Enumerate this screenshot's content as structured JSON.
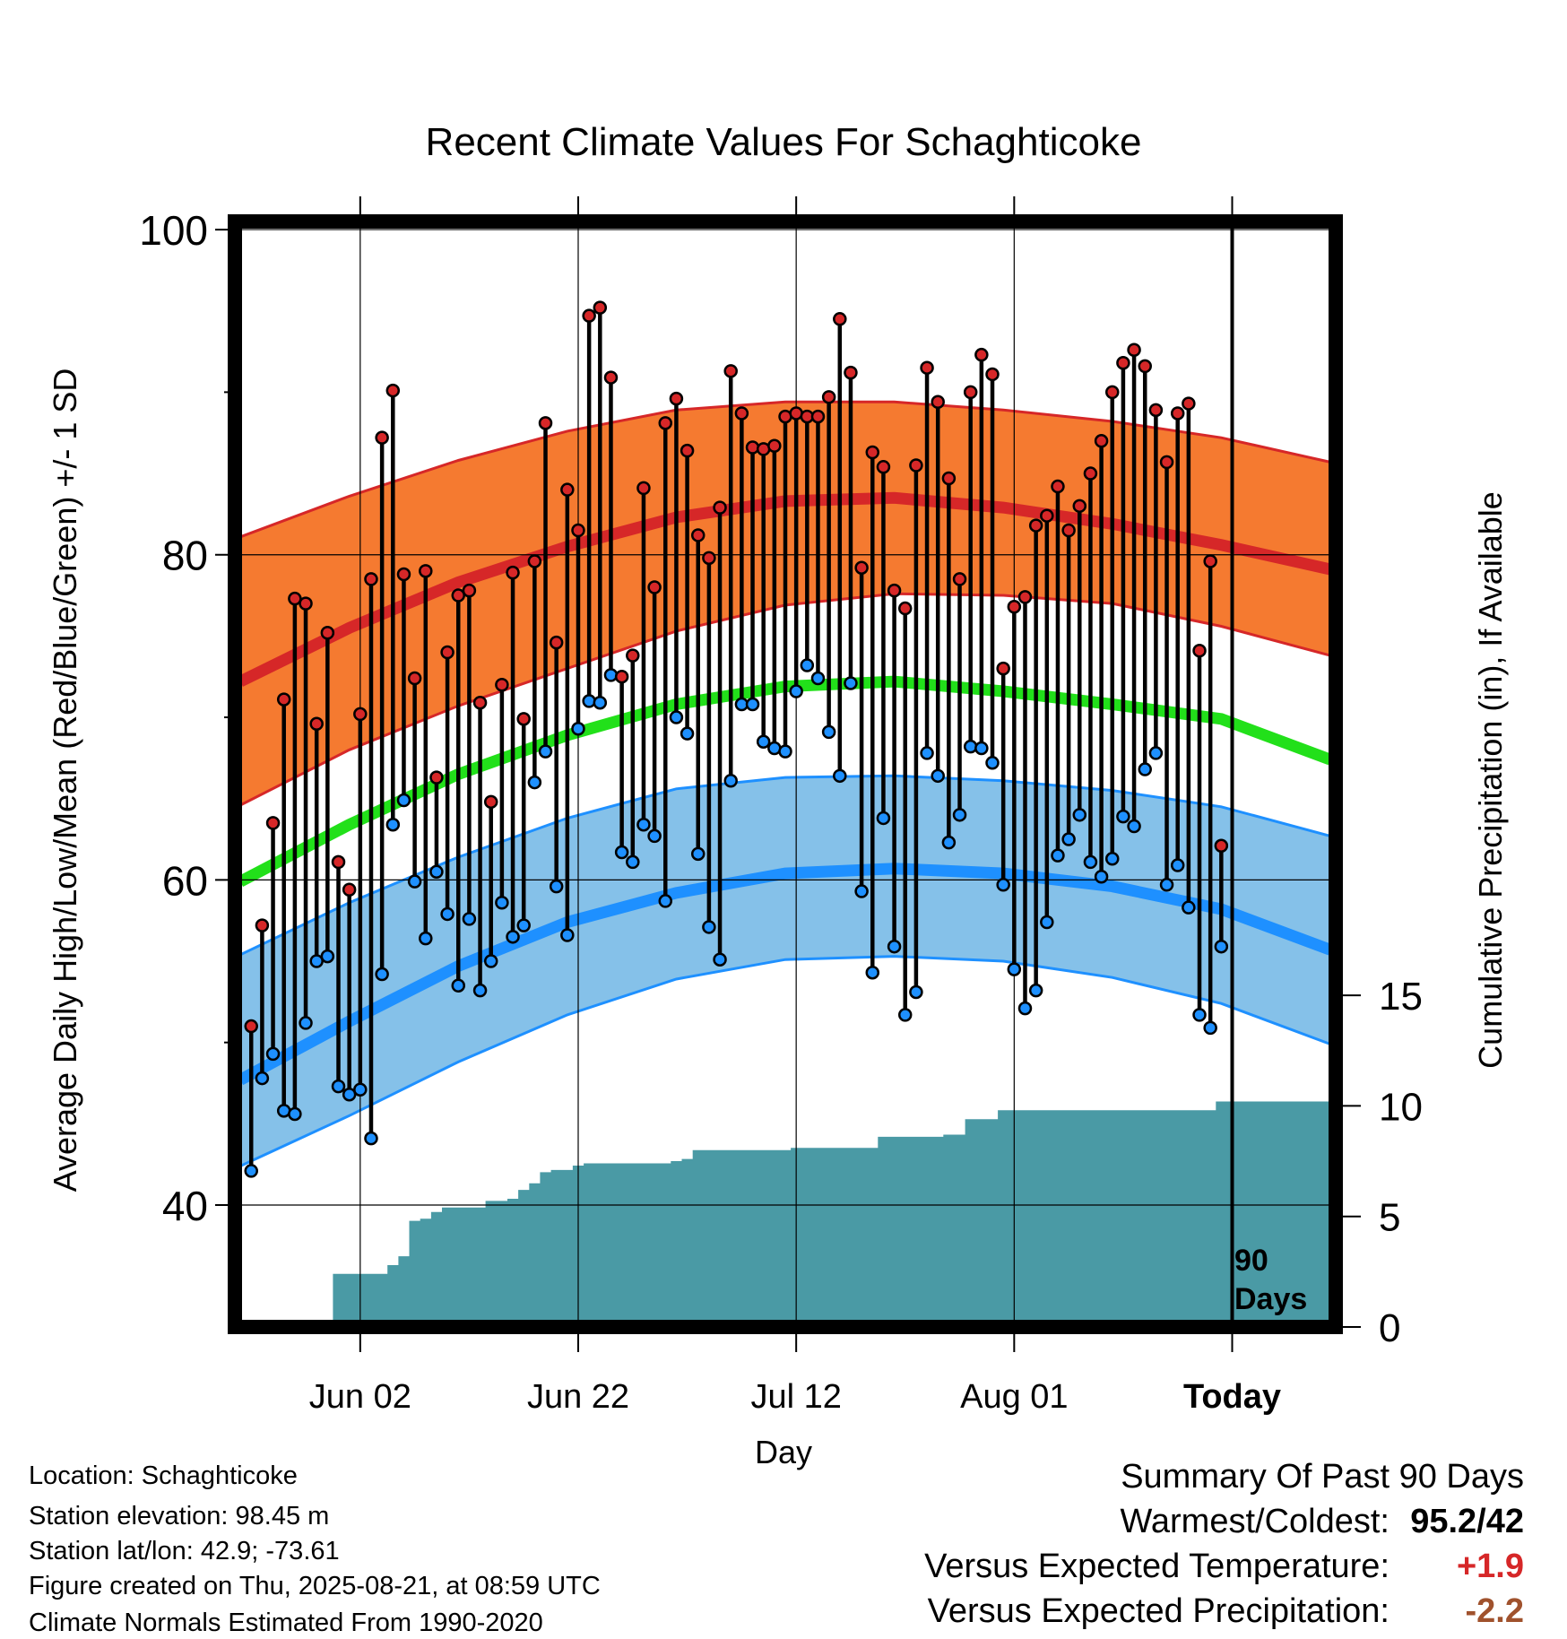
{
  "chart_data": {
    "type": "line",
    "title": "Recent Climate Values For Schaghticoke",
    "xlabel": "Day",
    "ylabel": "Average Daily High/Low/Mean (Red/Blue/Green) +/- 1 SD",
    "y2label": "Cumulative Precipitation (in), If Available",
    "ylim": [
      32.5,
      100.5
    ],
    "y_ticks": [
      "40",
      "60",
      "80",
      "100"
    ],
    "y2_ticks": [
      "0",
      "5",
      "10",
      "15"
    ],
    "y2lim": [
      0,
      50
    ],
    "x_tick_labels": [
      "Jun 02",
      "Jun 22",
      "Jul 12",
      "Aug 01",
      "Today"
    ],
    "x_tick_days": [
      -80,
      -60,
      -40,
      -20,
      0
    ],
    "xlim": [
      -91.5,
      9.5
    ],
    "today_marker": {
      "day": 0,
      "label_line1": "90",
      "label_line2": "Days"
    },
    "grid": true,
    "colors": {
      "high_band": "#f57a30",
      "high_line": "#d62728",
      "low_band": "#85c1e9",
      "low_line": "#1e90ff",
      "mean_line": "#22e01a",
      "precip": "#4a9aa5",
      "high_point": "#d62728",
      "low_point": "#1e90ff"
    },
    "normals": {
      "days": [
        -91,
        -81,
        -71,
        -61,
        -51,
        -41,
        -31,
        -21,
        -11,
        -1,
        9
      ],
      "high_mean": [
        72.2,
        75.5,
        78.3,
        80.5,
        82.3,
        83.3,
        83.5,
        82.9,
        81.9,
        80.6,
        79.1
      ],
      "high_upper": [
        81.1,
        83.6,
        85.8,
        87.6,
        88.9,
        89.4,
        89.4,
        88.9,
        88.2,
        87.2,
        85.7
      ],
      "high_lower": [
        64.6,
        68.0,
        70.7,
        73.0,
        75.3,
        76.9,
        77.6,
        77.5,
        77.0,
        75.6,
        73.8
      ],
      "low_mean": [
        47.7,
        51.3,
        54.7,
        57.4,
        59.2,
        60.4,
        60.7,
        60.4,
        59.6,
        58.2,
        55.7
      ],
      "low_upper": [
        55.4,
        58.6,
        61.4,
        63.8,
        65.6,
        66.3,
        66.4,
        66.1,
        65.5,
        64.5,
        62.7
      ],
      "low_lower": [
        42.4,
        45.5,
        48.8,
        51.7,
        53.9,
        55.1,
        55.3,
        55.0,
        54.0,
        52.4,
        49.9
      ],
      "daily_mean": [
        59.9,
        63.4,
        66.5,
        68.9,
        70.8,
        71.9,
        72.2,
        71.6,
        70.8,
        69.9,
        67.4
      ]
    },
    "series": [
      {
        "name": "High",
        "x": [
          -90,
          -89,
          -88,
          -87,
          -86,
          -85,
          -84,
          -83,
          -82,
          -81,
          -80,
          -79,
          -78,
          -77,
          -76,
          -75,
          -74,
          -73,
          -72,
          -71,
          -70,
          -69,
          -68,
          -67,
          -66,
          -65,
          -64,
          -63,
          -62,
          -61,
          -60,
          -59,
          -58,
          -57,
          -56,
          -55,
          -54,
          -53,
          -52,
          -51,
          -50,
          -49,
          -48,
          -47,
          -46,
          -45,
          -44,
          -43,
          -42,
          -41,
          -40,
          -39,
          -38,
          -37,
          -36,
          -35,
          -34,
          -33,
          -32,
          -31,
          -30,
          -29,
          -28,
          -27,
          -26,
          -25,
          -24,
          -23,
          -22,
          -21,
          -20,
          -19,
          -18,
          -17,
          -16,
          -15,
          -14,
          -13,
          -12,
          -11,
          -10,
          -9,
          -8,
          -7,
          -6,
          -5,
          -4,
          -3,
          -2,
          -1
        ],
        "values": [
          51.0,
          57.2,
          63.5,
          71.1,
          77.3,
          77.0,
          69.6,
          75.2,
          61.1,
          59.4,
          70.2,
          78.5,
          87.2,
          90.1,
          78.8,
          72.4,
          79.0,
          66.3,
          74.0,
          77.5,
          77.8,
          70.9,
          64.8,
          72.0,
          78.9,
          69.9,
          79.6,
          88.1,
          74.6,
          84.0,
          81.5,
          94.7,
          95.2,
          90.9,
          72.5,
          73.8,
          84.1,
          78.0,
          88.1,
          89.6,
          86.4,
          81.2,
          79.8,
          82.9,
          91.3,
          88.7,
          86.6,
          86.5,
          86.7,
          88.5,
          88.7,
          88.5,
          88.5,
          89.7,
          94.5,
          91.2,
          79.2,
          86.3,
          85.4,
          77.8,
          76.7,
          85.5,
          91.5,
          89.4,
          84.7,
          78.5,
          90.0,
          92.3,
          91.1,
          73.0,
          76.8,
          77.4,
          81.8,
          82.4,
          84.2,
          81.5,
          83.0,
          85.0,
          87.0,
          90.0,
          91.8,
          92.6,
          91.6,
          88.9,
          85.7,
          88.7,
          89.3,
          74.1,
          79.6,
          62.1
        ]
      },
      {
        "name": "Low",
        "x": [
          -90,
          -89,
          -88,
          -87,
          -86,
          -85,
          -84,
          -83,
          -82,
          -81,
          -80,
          -79,
          -78,
          -77,
          -76,
          -75,
          -74,
          -73,
          -72,
          -71,
          -70,
          -69,
          -68,
          -67,
          -66,
          -65,
          -64,
          -63,
          -62,
          -61,
          -60,
          -59,
          -58,
          -57,
          -56,
          -55,
          -54,
          -53,
          -52,
          -51,
          -50,
          -49,
          -48,
          -47,
          -46,
          -45,
          -44,
          -43,
          -42,
          -41,
          -40,
          -39,
          -38,
          -37,
          -36,
          -35,
          -34,
          -33,
          -32,
          -31,
          -30,
          -29,
          -28,
          -27,
          -26,
          -25,
          -24,
          -23,
          -22,
          -21,
          -20,
          -19,
          -18,
          -17,
          -16,
          -15,
          -14,
          -13,
          -12,
          -11,
          -10,
          -9,
          -8,
          -7,
          -6,
          -5,
          -4,
          -3,
          -2,
          -1
        ],
        "values": [
          42.1,
          47.8,
          49.3,
          45.8,
          45.6,
          51.2,
          55.0,
          55.3,
          47.3,
          46.8,
          47.1,
          44.1,
          54.2,
          63.4,
          64.9,
          59.9,
          56.4,
          60.5,
          57.9,
          53.5,
          57.6,
          53.2,
          55.0,
          58.6,
          56.5,
          57.2,
          66.0,
          67.9,
          59.6,
          56.6,
          69.3,
          71.0,
          70.9,
          72.6,
          61.7,
          61.1,
          63.4,
          62.7,
          58.7,
          70.0,
          69.0,
          61.6,
          57.1,
          55.1,
          66.1,
          70.8,
          70.8,
          68.5,
          68.1,
          67.9,
          71.6,
          73.2,
          72.4,
          69.1,
          66.4,
          72.1,
          59.3,
          54.3,
          63.8,
          55.9,
          51.7,
          53.1,
          67.8,
          66.4,
          62.3,
          64.0,
          68.2,
          68.1,
          67.2,
          59.7,
          54.5,
          52.1,
          53.2,
          57.4,
          61.5,
          62.5,
          64.0,
          61.1,
          60.2,
          61.3,
          63.9,
          63.3,
          66.8,
          67.8,
          59.7,
          60.9,
          58.3,
          51.7,
          50.9,
          55.9
        ]
      }
    ],
    "precipitation": {
      "name": "Cumulative Precipitation",
      "x": [
        -90,
        -89,
        -88,
        -87,
        -86,
        -85,
        -84,
        -83,
        -82,
        -81,
        -80,
        -79,
        -78,
        -77,
        -76,
        -75,
        -74,
        -73,
        -72,
        -71,
        -70,
        -69,
        -68,
        -67,
        -66,
        -65,
        -64,
        -63,
        -62,
        -61,
        -60,
        -59,
        -58,
        -57,
        -56,
        -55,
        -54,
        -53,
        -52,
        -51,
        -50,
        -49,
        -48,
        -47,
        -46,
        -45,
        -44,
        -43,
        -42,
        -41,
        -40,
        -39,
        -38,
        -37,
        -36,
        -35,
        -34,
        -33,
        -32,
        -31,
        -30,
        -29,
        -28,
        -27,
        -26,
        -25,
        -24,
        -23,
        -22,
        -21,
        -20,
        -19,
        -18,
        -17,
        -16,
        -15,
        -14,
        -13,
        -12,
        -11,
        -10,
        -9,
        -8,
        -7,
        -6,
        -5,
        -4,
        -3,
        -2,
        -1,
        0,
        1,
        2,
        3,
        4,
        5,
        6,
        7,
        8,
        9
      ],
      "values": [
        0,
        0,
        0,
        0,
        0,
        0,
        0,
        0,
        2.4,
        2.4,
        2.4,
        2.4,
        2.4,
        2.8,
        3.2,
        4.8,
        4.9,
        5.2,
        5.4,
        5.4,
        5.4,
        5.4,
        5.7,
        5.7,
        5.8,
        6.2,
        6.5,
        7.0,
        7.1,
        7.1,
        7.3,
        7.4,
        7.4,
        7.4,
        7.4,
        7.4,
        7.4,
        7.4,
        7.4,
        7.5,
        7.6,
        8.0,
        8.0,
        8.0,
        8.0,
        8.0,
        8.0,
        8.0,
        8.0,
        8.0,
        8.1,
        8.1,
        8.1,
        8.1,
        8.1,
        8.1,
        8.1,
        8.1,
        8.6,
        8.6,
        8.6,
        8.6,
        8.6,
        8.6,
        8.7,
        8.7,
        9.4,
        9.4,
        9.4,
        9.8,
        9.8,
        9.8,
        9.8,
        9.8,
        9.8,
        9.8,
        9.8,
        9.8,
        9.8,
        9.8,
        9.8,
        9.8,
        9.8,
        9.8,
        9.8,
        9.8,
        9.8,
        9.8,
        9.8,
        10.2,
        10.2,
        10.2,
        10.2,
        10.2,
        10.2,
        10.2,
        10.2,
        10.2,
        10.2,
        10.2
      ]
    }
  },
  "info": {
    "location": "Location: Schaghticoke",
    "elevation": "Station elevation: 98.45 m",
    "latlon": "Station lat/lon: 42.9; -73.61",
    "created": "Figure created on Thu, 2025-08-21, at 08:59 UTC",
    "normals": "Climate Normals Estimated From 1990-2020"
  },
  "summary": {
    "heading": "Summary Of Past 90 Days",
    "warm_cold_label": "Warmest/Coldest:",
    "warm_cold_value": "95.2/42",
    "temp_label": "Versus Expected Temperature:",
    "temp_value": "+1.9",
    "temp_color": "#d62728",
    "precip_label": "Versus Expected Precipitation:",
    "precip_value": "-2.2",
    "precip_color": "#a0522d"
  }
}
